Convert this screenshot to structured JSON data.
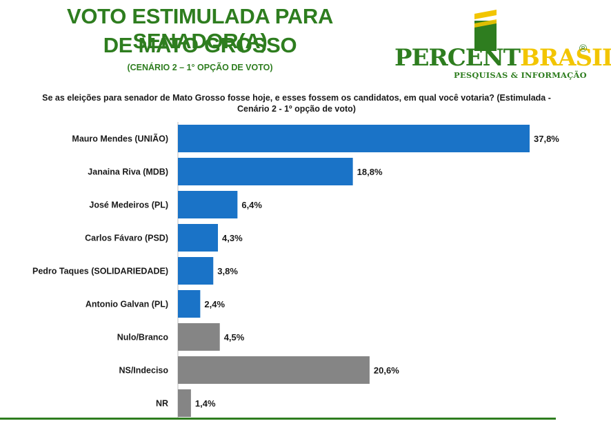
{
  "header": {
    "title_line1": "VOTO ESTIMULADA PARA SENADOR(A)",
    "title_line2": "DE MATO GROSSO",
    "subtitle": "(CENÁRIO 2 – 1° OPÇÃO DE VOTO)"
  },
  "logo": {
    "word_part1": "PERCENT",
    "word_part2": "BRASIL",
    "registered": "®",
    "tagline": "PESQUISAS & INFORMAÇÃO",
    "colors": {
      "green": "#2e7d1f",
      "yellow": "#f2c500"
    }
  },
  "question": "Se as eleições para senador de Mato Grosso fosse hoje, e esses fossem os candidatos, em qual você votaria? (Estimulada - Cenário 2 - 1º opção de voto)",
  "chart_data": {
    "type": "bar",
    "orientation": "horizontal",
    "categories": [
      "Mauro Mendes (UNIÃO)",
      "Janaina Riva (MDB)",
      "José Medeiros (PL)",
      "Carlos Fávaro (PSD)",
      "Pedro Taques (SOLIDARIEDADE)",
      "Antonio Galvan (PL)",
      "Nulo/Branco",
      "NS/Indeciso",
      "NR"
    ],
    "values": [
      37.8,
      18.8,
      6.4,
      4.3,
      3.8,
      2.4,
      4.5,
      20.6,
      1.4
    ],
    "value_labels": [
      "37,8%",
      "18,8%",
      "6,4%",
      "4,3%",
      "3,8%",
      "2,4%",
      "4,5%",
      "20,6%",
      "1,4%"
    ],
    "bar_colors": [
      "#1a73c7",
      "#1a73c7",
      "#1a73c7",
      "#1a73c7",
      "#1a73c7",
      "#1a73c7",
      "#858585",
      "#858585",
      "#858585"
    ],
    "xlim": [
      0,
      37.8
    ],
    "grid": false,
    "legend": "none"
  }
}
